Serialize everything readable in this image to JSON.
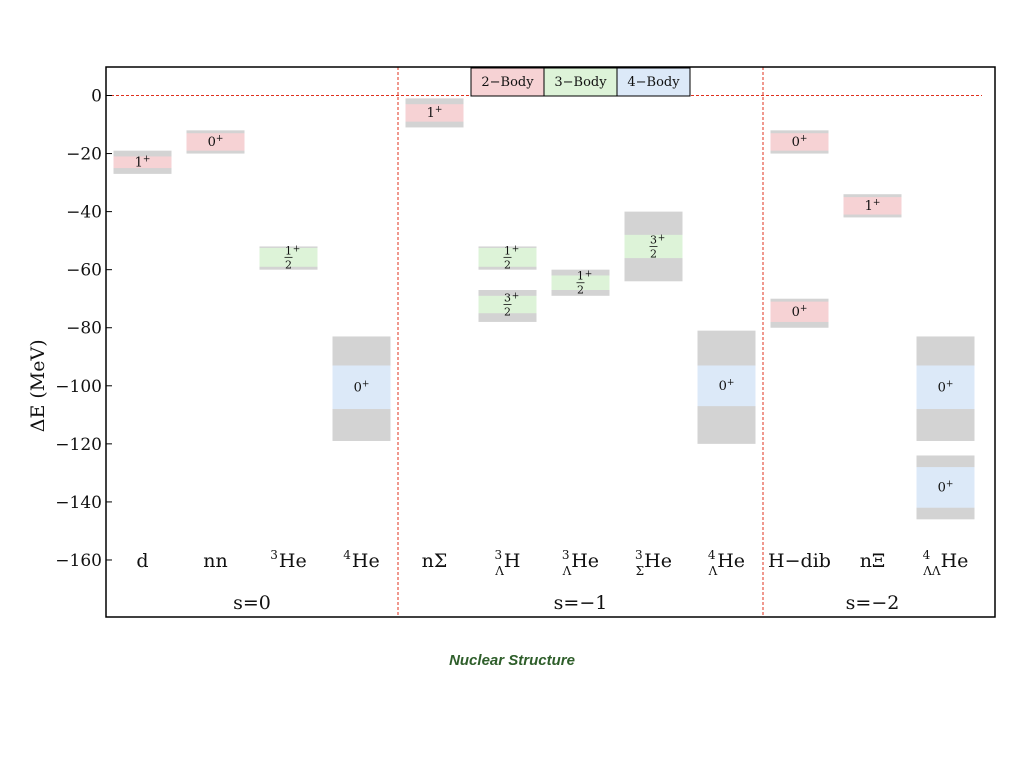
{
  "caption": "Nuclear Structure",
  "colors": {
    "two_body": "#f6d2d4",
    "three_body": "#ddf3d8",
    "four_body": "#dce9f8",
    "uncertainty": "#d3d3d3",
    "threshold_line": "#e0301e",
    "frame": "#000000"
  },
  "chart_data": {
    "type": "bar",
    "ylabel": "ΔE (MeV)",
    "ylim": [
      -170,
      10
    ],
    "yticks": [
      0,
      -20,
      -40,
      -60,
      -80,
      -100,
      -120,
      -140,
      -160
    ],
    "ytick_labels": [
      "0",
      "−20",
      "−40",
      "−60",
      "−80",
      "−100",
      "−120",
      "−140",
      "−160"
    ],
    "threshold": 0,
    "legend": {
      "placement": "top-center",
      "entries": [
        {
          "label": "2−Body",
          "kind": "two_body"
        },
        {
          "label": "3−Body",
          "kind": "three_body"
        },
        {
          "label": "4−Body",
          "kind": "four_body"
        }
      ]
    },
    "groups": [
      {
        "label": "s=0",
        "from": 0,
        "to": 3
      },
      {
        "label": "s=−1",
        "from": 4,
        "to": 8
      },
      {
        "label": "s=−2",
        "from": 9,
        "to": 11
      }
    ],
    "categories": [
      {
        "label": "d",
        "sup_pre": "",
        "sub_pre": "",
        "base": "d"
      },
      {
        "label": "nn",
        "sup_pre": "",
        "sub_pre": "",
        "base": "nn"
      },
      {
        "label": "3He",
        "sup_pre": "3",
        "sub_pre": "",
        "base": "He"
      },
      {
        "label": "4He",
        "sup_pre": "4",
        "sub_pre": "",
        "base": "He"
      },
      {
        "label": "nΣ",
        "sup_pre": "",
        "sub_pre": "",
        "base": "nΣ"
      },
      {
        "label": "3ΛH",
        "sup_pre": "3",
        "sub_pre": "Λ",
        "base": "H"
      },
      {
        "label": "3ΛHe",
        "sup_pre": "3",
        "sub_pre": "Λ",
        "base": "He"
      },
      {
        "label": "3ΣHe",
        "sup_pre": "3",
        "sub_pre": "Σ",
        "base": "He"
      },
      {
        "label": "4ΛHe",
        "sup_pre": "4",
        "sub_pre": "Λ",
        "base": "He"
      },
      {
        "label": "H−dib",
        "sup_pre": "",
        "sub_pre": "",
        "base": "H−dib"
      },
      {
        "label": "nΞ",
        "sup_pre": "",
        "sub_pre": "",
        "base": "nΞ"
      },
      {
        "label": "4ΛΛHe",
        "sup_pre": "4",
        "sub_pre": "ΛΛ",
        "base": "He"
      }
    ],
    "levels": [
      {
        "category": 0,
        "kind": "two_body",
        "jp": "1+",
        "band": [
          -27,
          -19
        ],
        "center": [
          -25,
          -21
        ]
      },
      {
        "category": 1,
        "kind": "two_body",
        "jp": "0+",
        "band": [
          -20,
          -12
        ],
        "center": [
          -19,
          -13
        ]
      },
      {
        "category": 2,
        "kind": "three_body",
        "jp": "1/2+",
        "band": [
          -60,
          -52
        ],
        "center": [
          -59,
          -52.5
        ]
      },
      {
        "category": 3,
        "kind": "four_body",
        "jp": "0+",
        "band": [
          -119,
          -83
        ],
        "center": [
          -108,
          -93
        ]
      },
      {
        "category": 4,
        "kind": "two_body",
        "jp": "1+",
        "band": [
          -11,
          -1
        ],
        "center": [
          -9,
          -3
        ]
      },
      {
        "category": 5,
        "kind": "three_body",
        "jp": "1/2+",
        "band": [
          -60,
          -52
        ],
        "center": [
          -59,
          -52.5
        ]
      },
      {
        "category": 5,
        "kind": "three_body",
        "jp": "3/2+",
        "band": [
          -78,
          -67
        ],
        "center": [
          -75,
          -69
        ]
      },
      {
        "category": 6,
        "kind": "three_body",
        "jp": "1/2+",
        "band": [
          -69,
          -60
        ],
        "center": [
          -67,
          -62
        ]
      },
      {
        "category": 7,
        "kind": "three_body",
        "jp": "3/2+",
        "band": [
          -64,
          -40
        ],
        "center": [
          -56,
          -48
        ]
      },
      {
        "category": 8,
        "kind": "four_body",
        "jp": "0+",
        "band": [
          -120,
          -81
        ],
        "center": [
          -107,
          -93
        ]
      },
      {
        "category": 9,
        "kind": "two_body",
        "jp": "0+",
        "band": [
          -20,
          -12
        ],
        "center": [
          -19,
          -13
        ]
      },
      {
        "category": 9,
        "kind": "two_body",
        "jp": "0+",
        "band": [
          -80,
          -70
        ],
        "center": [
          -78,
          -71
        ]
      },
      {
        "category": 10,
        "kind": "two_body",
        "jp": "1+",
        "band": [
          -42,
          -34
        ],
        "center": [
          -41,
          -35
        ]
      },
      {
        "category": 11,
        "kind": "four_body",
        "jp": "0+",
        "band": [
          -119,
          -83
        ],
        "center": [
          -108,
          -93
        ]
      },
      {
        "category": 11,
        "kind": "four_body",
        "jp": "0+",
        "band": [
          -146,
          -124
        ],
        "center": [
          -142,
          -128
        ]
      }
    ]
  }
}
